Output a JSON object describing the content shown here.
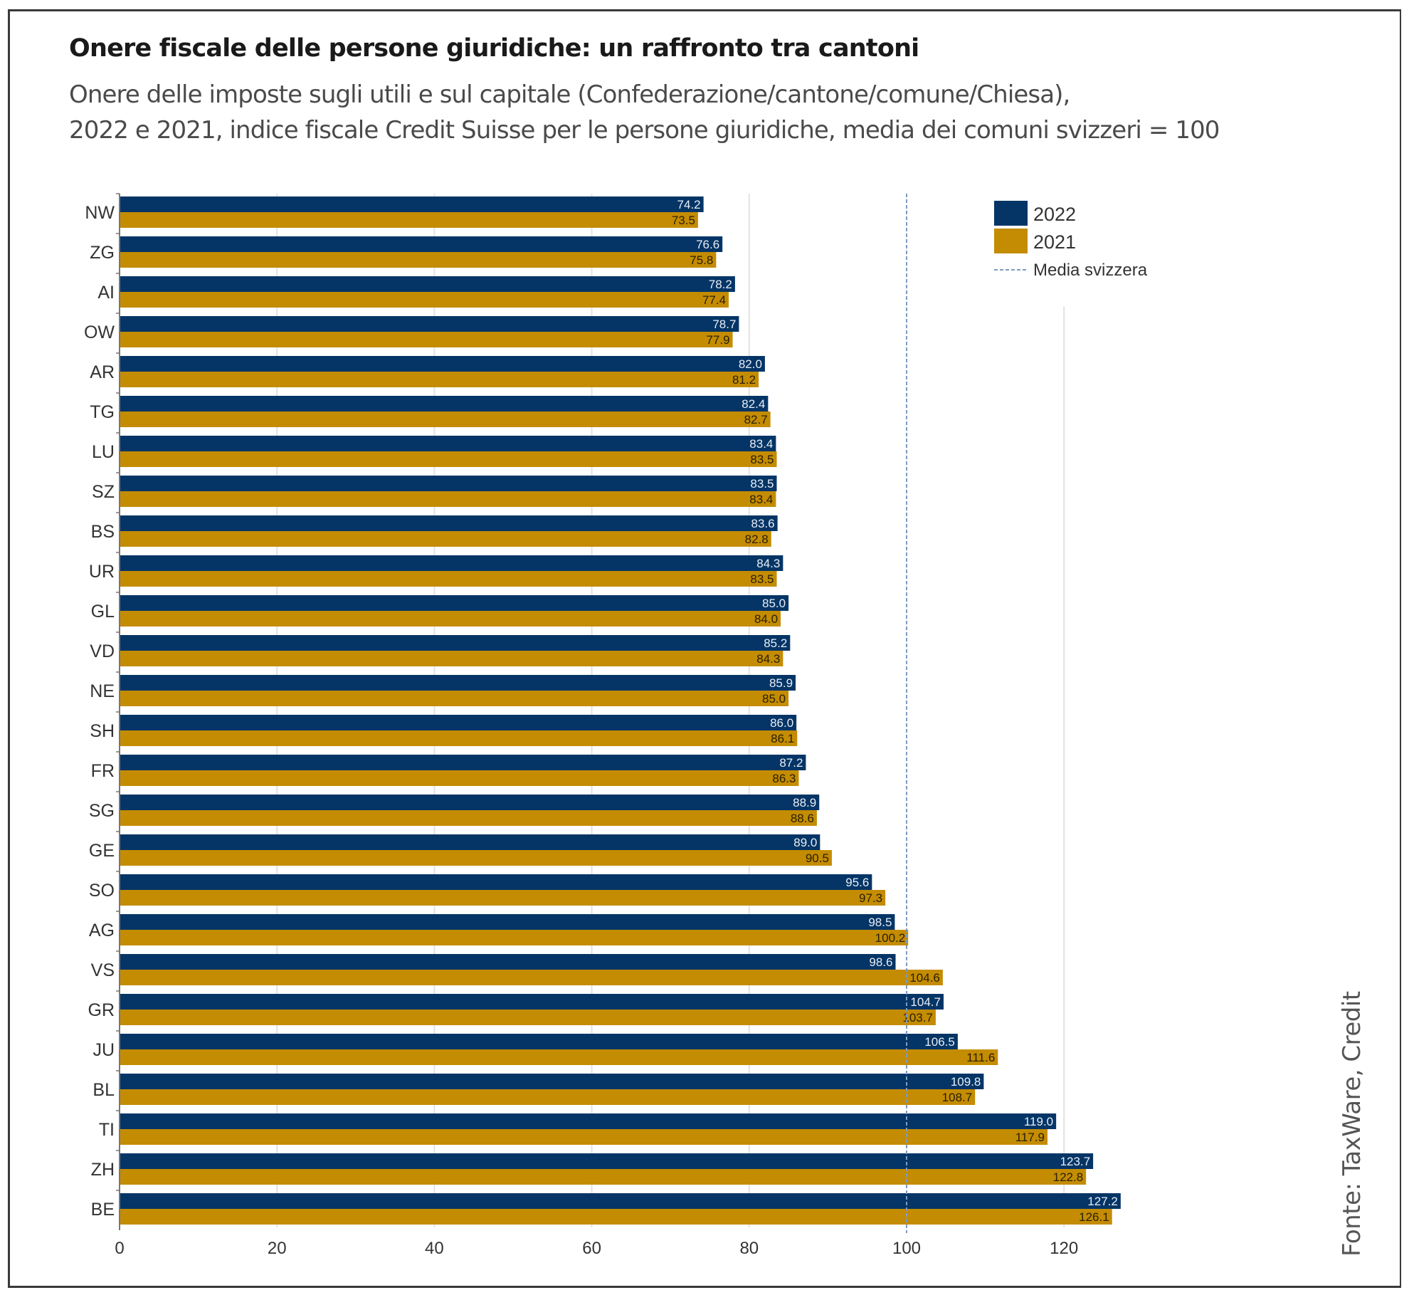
{
  "header": {
    "title": "Onere fiscale delle persone giuridiche: un raffronto tra cantoni",
    "subtitle_line1": "Onere delle imposte sugli utili e sul capitale (Confederazione/cantone/comune/Chiesa),",
    "subtitle_line2": "2022 e 2021, indice fiscale Credit Suisse per le persone giuridiche, media dei comuni svizzeri = 100"
  },
  "source": "Fonte: TaxWare, Credit",
  "colors": {
    "series_2022": "#053566",
    "series_2021": "#C48C02",
    "average_line": "#7f9bbf",
    "gridline": "#e2e2e2"
  },
  "chart_data": {
    "type": "bar",
    "orientation": "horizontal",
    "title": "Onere fiscale delle persone giuridiche: un raffronto tra cantoni",
    "subtitle": "Onere delle imposte sugli utili e sul capitale (Confederazione/cantone/comune/Chiesa), 2022 e 2021, indice fiscale Credit Suisse per le persone giuridiche, media dei comuni svizzeri = 100",
    "xlabel": "",
    "ylabel": "",
    "xlim": [
      0,
      127.2
    ],
    "xticks": [
      0,
      20,
      40,
      60,
      80,
      100,
      120
    ],
    "grid": true,
    "legend_position": "top-right",
    "categories": [
      "NW",
      "ZG",
      "AI",
      "OW",
      "AR",
      "TG",
      "LU",
      "SZ",
      "BS",
      "UR",
      "GL",
      "VD",
      "NE",
      "SH",
      "FR",
      "SG",
      "GE",
      "SO",
      "AG",
      "VS",
      "GR",
      "JU",
      "BL",
      "TI",
      "ZH",
      "BE"
    ],
    "series": [
      {
        "name": "2022",
        "values": [
          74.2,
          76.6,
          78.2,
          78.7,
          82.0,
          82.4,
          83.4,
          83.5,
          83.6,
          84.3,
          85.0,
          85.2,
          85.9,
          86.0,
          87.2,
          88.9,
          89.0,
          95.6,
          98.5,
          98.6,
          104.7,
          106.5,
          109.8,
          119.0,
          123.7,
          127.2
        ]
      },
      {
        "name": "2021",
        "values": [
          73.5,
          75.8,
          77.4,
          77.9,
          81.2,
          82.7,
          83.5,
          83.4,
          82.8,
          83.5,
          84.0,
          84.3,
          85.0,
          86.1,
          86.3,
          88.6,
          90.5,
          97.3,
          100.2,
          104.6,
          103.7,
          111.6,
          108.7,
          117.9,
          122.8,
          126.1
        ]
      }
    ],
    "reference_line": {
      "name": "Media svizzera",
      "value": 100,
      "style": "dashed"
    },
    "legend": [
      "2022",
      "2021",
      "Media svizzera"
    ]
  }
}
